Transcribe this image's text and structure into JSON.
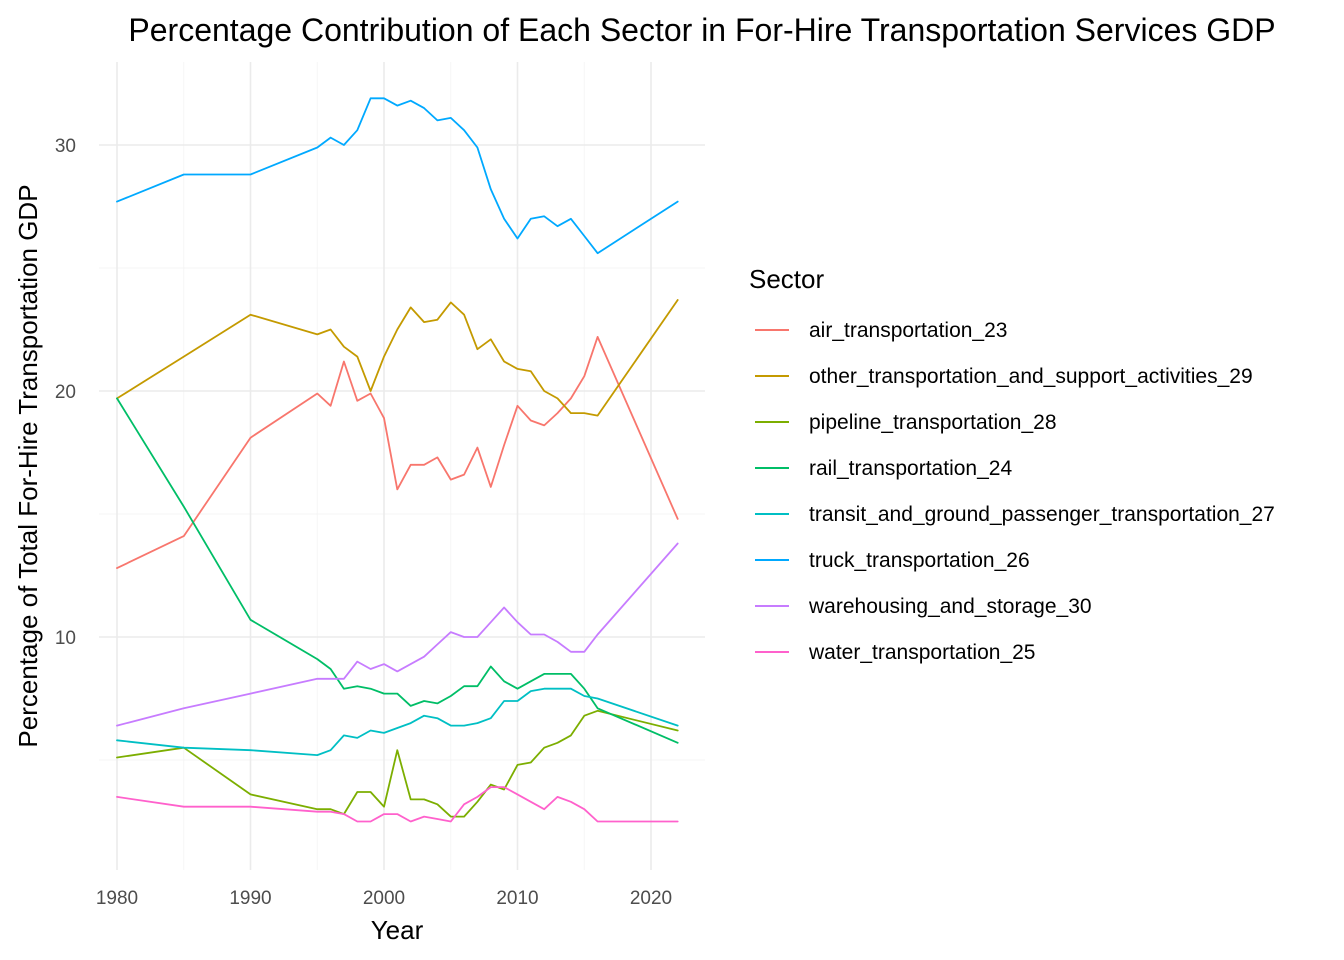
{
  "chart_data": {
    "type": "line",
    "title": "Percentage Contribution of Each Sector in For-Hire Transportation Services GDP",
    "xlabel": "Year",
    "ylabel": "Percentage of Total For-Hire Transportation GDP",
    "xlim": [
      1979.9,
      2022.4
    ],
    "ylim": [
      1.0,
      33.0
    ],
    "x_ticks": [
      1980,
      1990,
      2000,
      2010,
      2020
    ],
    "y_ticks": [
      10,
      20,
      30
    ],
    "grid": true,
    "legend_title": "Sector",
    "legend_position": "right",
    "series": [
      {
        "name": "air_transportation_23",
        "color": "#F8766D",
        "points": [
          [
            1980,
            12.8
          ],
          [
            1985,
            14.1
          ],
          [
            1990,
            18.1
          ],
          [
            1995,
            19.9
          ],
          [
            1996,
            19.4
          ],
          [
            1997,
            21.2
          ],
          [
            1998,
            19.6
          ],
          [
            1999,
            19.9
          ],
          [
            2000,
            18.9
          ],
          [
            2001,
            16.0
          ],
          [
            2002,
            17.0
          ],
          [
            2003,
            17.0
          ],
          [
            2004,
            17.3
          ],
          [
            2005,
            16.4
          ],
          [
            2006,
            16.6
          ],
          [
            2007,
            17.7
          ],
          [
            2008,
            16.1
          ],
          [
            2009,
            17.8
          ],
          [
            2010,
            19.4
          ],
          [
            2011,
            18.8
          ],
          [
            2012,
            18.6
          ],
          [
            2013,
            19.1
          ],
          [
            2014,
            19.7
          ],
          [
            2015,
            20.6
          ],
          [
            2016,
            22.2
          ],
          [
            2022,
            14.8
          ]
        ]
      },
      {
        "name": "other_transportation_and_support_activities_29",
        "color": "#C49A00",
        "points": [
          [
            1980,
            19.7
          ],
          [
            1985,
            21.4
          ],
          [
            1990,
            23.1
          ],
          [
            1995,
            22.3
          ],
          [
            1996,
            22.5
          ],
          [
            1997,
            21.8
          ],
          [
            1998,
            21.4
          ],
          [
            1999,
            20.0
          ],
          [
            2000,
            21.4
          ],
          [
            2001,
            22.5
          ],
          [
            2002,
            23.4
          ],
          [
            2003,
            22.8
          ],
          [
            2004,
            22.9
          ],
          [
            2005,
            23.6
          ],
          [
            2006,
            23.1
          ],
          [
            2007,
            21.7
          ],
          [
            2008,
            22.1
          ],
          [
            2009,
            21.2
          ],
          [
            2010,
            20.9
          ],
          [
            2011,
            20.8
          ],
          [
            2012,
            20.0
          ],
          [
            2013,
            19.7
          ],
          [
            2014,
            19.1
          ],
          [
            2015,
            19.1
          ],
          [
            2016,
            19.0
          ],
          [
            2022,
            23.7
          ]
        ]
      },
      {
        "name": "pipeline_transportation_28",
        "color": "#7CAE00",
        "points": [
          [
            1980,
            5.1
          ],
          [
            1985,
            5.5
          ],
          [
            1990,
            3.6
          ],
          [
            1995,
            3.0
          ],
          [
            1996,
            3.0
          ],
          [
            1997,
            2.8
          ],
          [
            1998,
            3.7
          ],
          [
            1999,
            3.7
          ],
          [
            2000,
            3.1
          ],
          [
            2001,
            5.4
          ],
          [
            2002,
            3.4
          ],
          [
            2003,
            3.4
          ],
          [
            2004,
            3.2
          ],
          [
            2005,
            2.7
          ],
          [
            2006,
            2.7
          ],
          [
            2007,
            3.3
          ],
          [
            2008,
            4.0
          ],
          [
            2009,
            3.8
          ],
          [
            2010,
            4.8
          ],
          [
            2011,
            4.9
          ],
          [
            2012,
            5.5
          ],
          [
            2013,
            5.7
          ],
          [
            2014,
            6.0
          ],
          [
            2015,
            6.8
          ],
          [
            2016,
            7.0
          ],
          [
            2022,
            6.2
          ]
        ]
      },
      {
        "name": "rail_transportation_24",
        "color": "#00BE67",
        "points": [
          [
            1980,
            19.7
          ],
          [
            1985,
            15.3
          ],
          [
            1990,
            10.7
          ],
          [
            1995,
            9.1
          ],
          [
            1996,
            8.7
          ],
          [
            1997,
            7.9
          ],
          [
            1998,
            8.0
          ],
          [
            1999,
            7.9
          ],
          [
            2000,
            7.7
          ],
          [
            2001,
            7.7
          ],
          [
            2002,
            7.2
          ],
          [
            2003,
            7.4
          ],
          [
            2004,
            7.3
          ],
          [
            2005,
            7.6
          ],
          [
            2006,
            8.0
          ],
          [
            2007,
            8.0
          ],
          [
            2008,
            8.8
          ],
          [
            2009,
            8.2
          ],
          [
            2010,
            7.9
          ],
          [
            2011,
            8.2
          ],
          [
            2012,
            8.5
          ],
          [
            2013,
            8.5
          ],
          [
            2014,
            8.5
          ],
          [
            2015,
            7.9
          ],
          [
            2016,
            7.1
          ],
          [
            2022,
            5.7
          ]
        ]
      },
      {
        "name": "transit_and_ground_passenger_transportation_27",
        "color": "#00BFC4",
        "points": [
          [
            1980,
            5.8
          ],
          [
            1985,
            5.5
          ],
          [
            1990,
            5.4
          ],
          [
            1995,
            5.2
          ],
          [
            1996,
            5.4
          ],
          [
            1997,
            6.0
          ],
          [
            1998,
            5.9
          ],
          [
            1999,
            6.2
          ],
          [
            2000,
            6.1
          ],
          [
            2001,
            6.3
          ],
          [
            2002,
            6.5
          ],
          [
            2003,
            6.8
          ],
          [
            2004,
            6.7
          ],
          [
            2005,
            6.4
          ],
          [
            2006,
            6.4
          ],
          [
            2007,
            6.5
          ],
          [
            2008,
            6.7
          ],
          [
            2009,
            7.4
          ],
          [
            2010,
            7.4
          ],
          [
            2011,
            7.8
          ],
          [
            2012,
            7.9
          ],
          [
            2013,
            7.9
          ],
          [
            2014,
            7.9
          ],
          [
            2015,
            7.6
          ],
          [
            2016,
            7.5
          ],
          [
            2022,
            6.4
          ]
        ]
      },
      {
        "name": "truck_transportation_26",
        "color": "#00A9FF",
        "points": [
          [
            1980,
            27.7
          ],
          [
            1985,
            28.8
          ],
          [
            1990,
            28.8
          ],
          [
            1995,
            29.9
          ],
          [
            1996,
            30.3
          ],
          [
            1997,
            30.0
          ],
          [
            1998,
            30.6
          ],
          [
            1999,
            31.9
          ],
          [
            2000,
            31.9
          ],
          [
            2001,
            31.6
          ],
          [
            2002,
            31.8
          ],
          [
            2003,
            31.5
          ],
          [
            2004,
            31.0
          ],
          [
            2005,
            31.1
          ],
          [
            2006,
            30.6
          ],
          [
            2007,
            29.9
          ],
          [
            2008,
            28.2
          ],
          [
            2009,
            27.0
          ],
          [
            2010,
            26.2
          ],
          [
            2011,
            27.0
          ],
          [
            2012,
            27.1
          ],
          [
            2013,
            26.7
          ],
          [
            2014,
            27.0
          ],
          [
            2015,
            26.3
          ],
          [
            2016,
            25.6
          ],
          [
            2022,
            27.7
          ]
        ]
      },
      {
        "name": "warehousing_and_storage_30",
        "color": "#C77CFF",
        "points": [
          [
            1980,
            6.4
          ],
          [
            1985,
            7.1
          ],
          [
            1990,
            7.7
          ],
          [
            1995,
            8.3
          ],
          [
            1996,
            8.3
          ],
          [
            1997,
            8.3
          ],
          [
            1998,
            9.0
          ],
          [
            1999,
            8.7
          ],
          [
            2000,
            8.9
          ],
          [
            2001,
            8.6
          ],
          [
            2002,
            8.9
          ],
          [
            2003,
            9.2
          ],
          [
            2004,
            9.7
          ],
          [
            2005,
            10.2
          ],
          [
            2006,
            10.0
          ],
          [
            2007,
            10.0
          ],
          [
            2008,
            10.6
          ],
          [
            2009,
            11.2
          ],
          [
            2010,
            10.6
          ],
          [
            2011,
            10.1
          ],
          [
            2012,
            10.1
          ],
          [
            2013,
            9.8
          ],
          [
            2014,
            9.4
          ],
          [
            2015,
            9.4
          ],
          [
            2016,
            10.1
          ],
          [
            2022,
            13.8
          ]
        ]
      },
      {
        "name": "water_transportation_25",
        "color": "#FF61CC",
        "points": [
          [
            1980,
            3.5
          ],
          [
            1985,
            3.1
          ],
          [
            1990,
            3.1
          ],
          [
            1995,
            2.9
          ],
          [
            1996,
            2.9
          ],
          [
            1997,
            2.8
          ],
          [
            1998,
            2.5
          ],
          [
            1999,
            2.5
          ],
          [
            2000,
            2.8
          ],
          [
            2001,
            2.8
          ],
          [
            2002,
            2.5
          ],
          [
            2003,
            2.7
          ],
          [
            2004,
            2.6
          ],
          [
            2005,
            2.5
          ],
          [
            2006,
            3.2
          ],
          [
            2007,
            3.5
          ],
          [
            2008,
            3.9
          ],
          [
            2009,
            3.9
          ],
          [
            2010,
            3.6
          ],
          [
            2011,
            3.3
          ],
          [
            2012,
            3.0
          ],
          [
            2013,
            3.5
          ],
          [
            2014,
            3.3
          ],
          [
            2015,
            3.0
          ],
          [
            2016,
            2.5
          ],
          [
            2022,
            2.5
          ]
        ]
      }
    ]
  }
}
